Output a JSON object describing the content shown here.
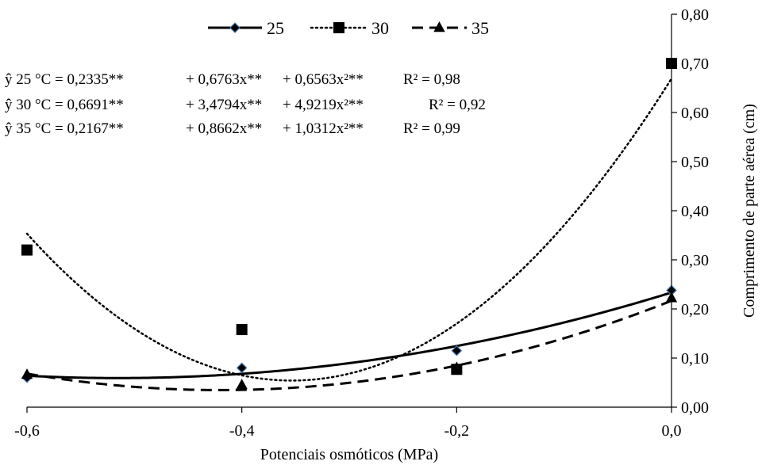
{
  "chart_data": {
    "type": "scatter",
    "xlabel": "Potenciais osmóticos (MPa)",
    "ylabel": "Comprimento de parte aérea (cm)",
    "xlim": [
      -0.6,
      0.0
    ],
    "ylim": [
      0.0,
      0.8
    ],
    "x_ticks": [
      "-0,6",
      "-0,4",
      "-0,2",
      "0,0"
    ],
    "y_ticks": [
      "0,00",
      "0,10",
      "0,20",
      "0,30",
      "0,40",
      "0,50",
      "0,60",
      "0,70",
      "0,80"
    ],
    "y_axis_position": "right",
    "grid": false,
    "legend_position": "top",
    "series": [
      {
        "name": "25",
        "marker": "diamond",
        "line_style": "solid",
        "x": [
          -0.6,
          -0.4,
          -0.2,
          0.0
        ],
        "y": [
          0.06,
          0.08,
          0.115,
          0.238
        ],
        "equation": "ŷ 25 °C = 0,2335** + 0,6763x** + 0,6563x²** R² = 0,98",
        "coefficients": [
          0.2335,
          0.6763,
          0.6563
        ],
        "r2": 0.98
      },
      {
        "name": "30",
        "marker": "square",
        "line_style": "dotted",
        "x": [
          -0.6,
          -0.4,
          -0.2,
          0.0
        ],
        "y": [
          0.32,
          0.158,
          0.077,
          0.7
        ],
        "equation": "ŷ 30 °C = 0,6691** + 3,4794x** + 4,9219x²** R² = 0,92",
        "coefficients": [
          0.6691,
          3.4794,
          4.9219
        ],
        "r2": 0.92
      },
      {
        "name": "35",
        "marker": "triangle",
        "line_style": "dashed",
        "x": [
          -0.6,
          -0.4,
          -0.2,
          0.0
        ],
        "y": [
          0.066,
          0.045,
          0.08,
          0.222
        ],
        "equation": "ŷ 35 °C = 0,2167** + 0,8662x** + 1,0312x²** R² = 0,99",
        "coefficients": [
          0.2167,
          0.8662,
          1.0312
        ],
        "r2": 0.99
      }
    ],
    "equations": [
      {
        "label": "ŷ 25 °C = 0,2335**",
        "t1": "+ 0,6763x**",
        "t2": "+ 0,6563x²**",
        "r2": "R² = 0,98"
      },
      {
        "label": "ŷ 30 °C = 0,6691**",
        "t1": "+ 3,4794x**",
        "t2": "+ 4,9219x²**",
        "r2": "R² = 0,92"
      },
      {
        "label": "ŷ 35 °C = 0,2167**",
        "t1": "+ 0,8662x**",
        "t2": "+ 1,0312x²**",
        "r2": "R² = 0,99"
      }
    ]
  }
}
